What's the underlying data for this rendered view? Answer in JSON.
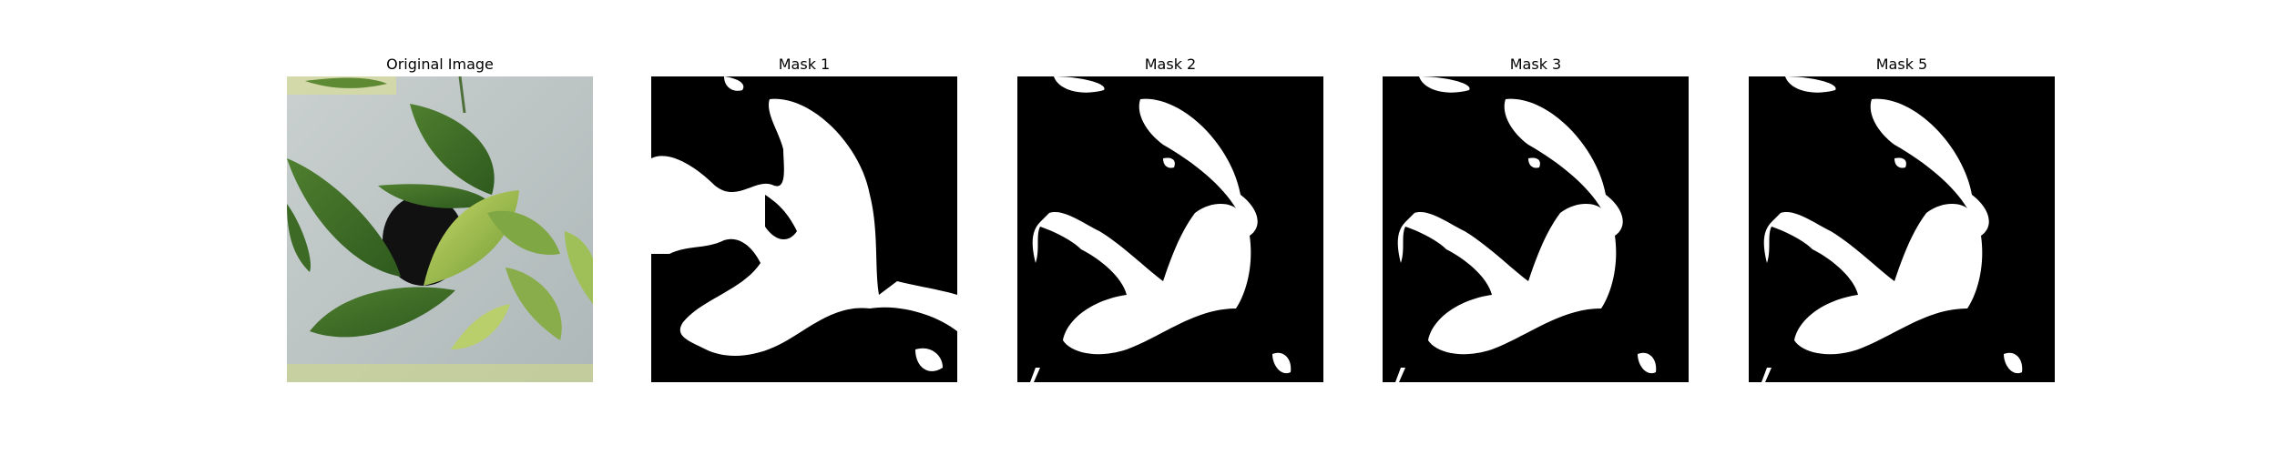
{
  "panels": [
    {
      "title": "Original Image",
      "kind": "photo",
      "description_icon": "plant-photo"
    },
    {
      "title": "Mask 1",
      "kind": "mask"
    },
    {
      "title": "Mask 2",
      "kind": "mask"
    },
    {
      "title": "Mask 3",
      "kind": "mask"
    },
    {
      "title": "Mask 5",
      "kind": "mask"
    }
  ],
  "colors": {
    "mask_background": "#000000",
    "mask_foreground": "#ffffff",
    "photo_background": "#b9c2c2",
    "leaf_dark": "#3f6a2a",
    "leaf_light": "#9fc059"
  }
}
